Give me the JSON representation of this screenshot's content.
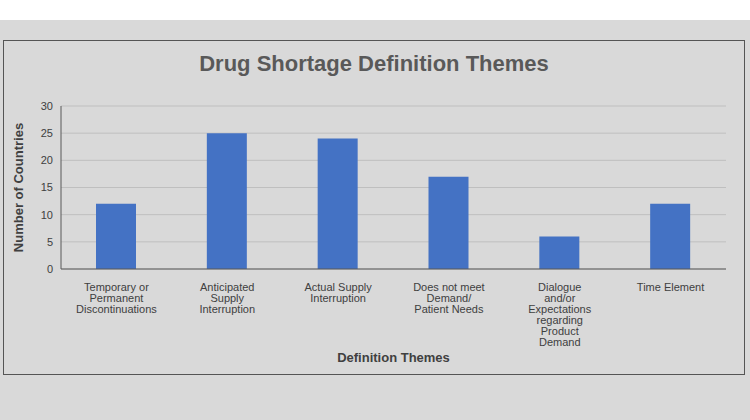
{
  "chart_data": {
    "type": "bar",
    "title": "Drug Shortage Definition Themes",
    "categories": [
      "Temporary or Permanent Discontinuations",
      "Anticipated Supply Interruption",
      "Actual Supply Interruption",
      "Does not meet Demand/ Patient Needs",
      "Dialogue and/or Expectations regarding Product Demand",
      "Time Element"
    ],
    "values": [
      12,
      25,
      24,
      17,
      6,
      12
    ],
    "color": "#4472c4",
    "xlabel": "Definition Themes",
    "ylabel": "Number of Countries",
    "ylim": [
      0,
      30
    ],
    "yticks": [
      0,
      5,
      10,
      15,
      20,
      25,
      30
    ],
    "grid": true
  }
}
